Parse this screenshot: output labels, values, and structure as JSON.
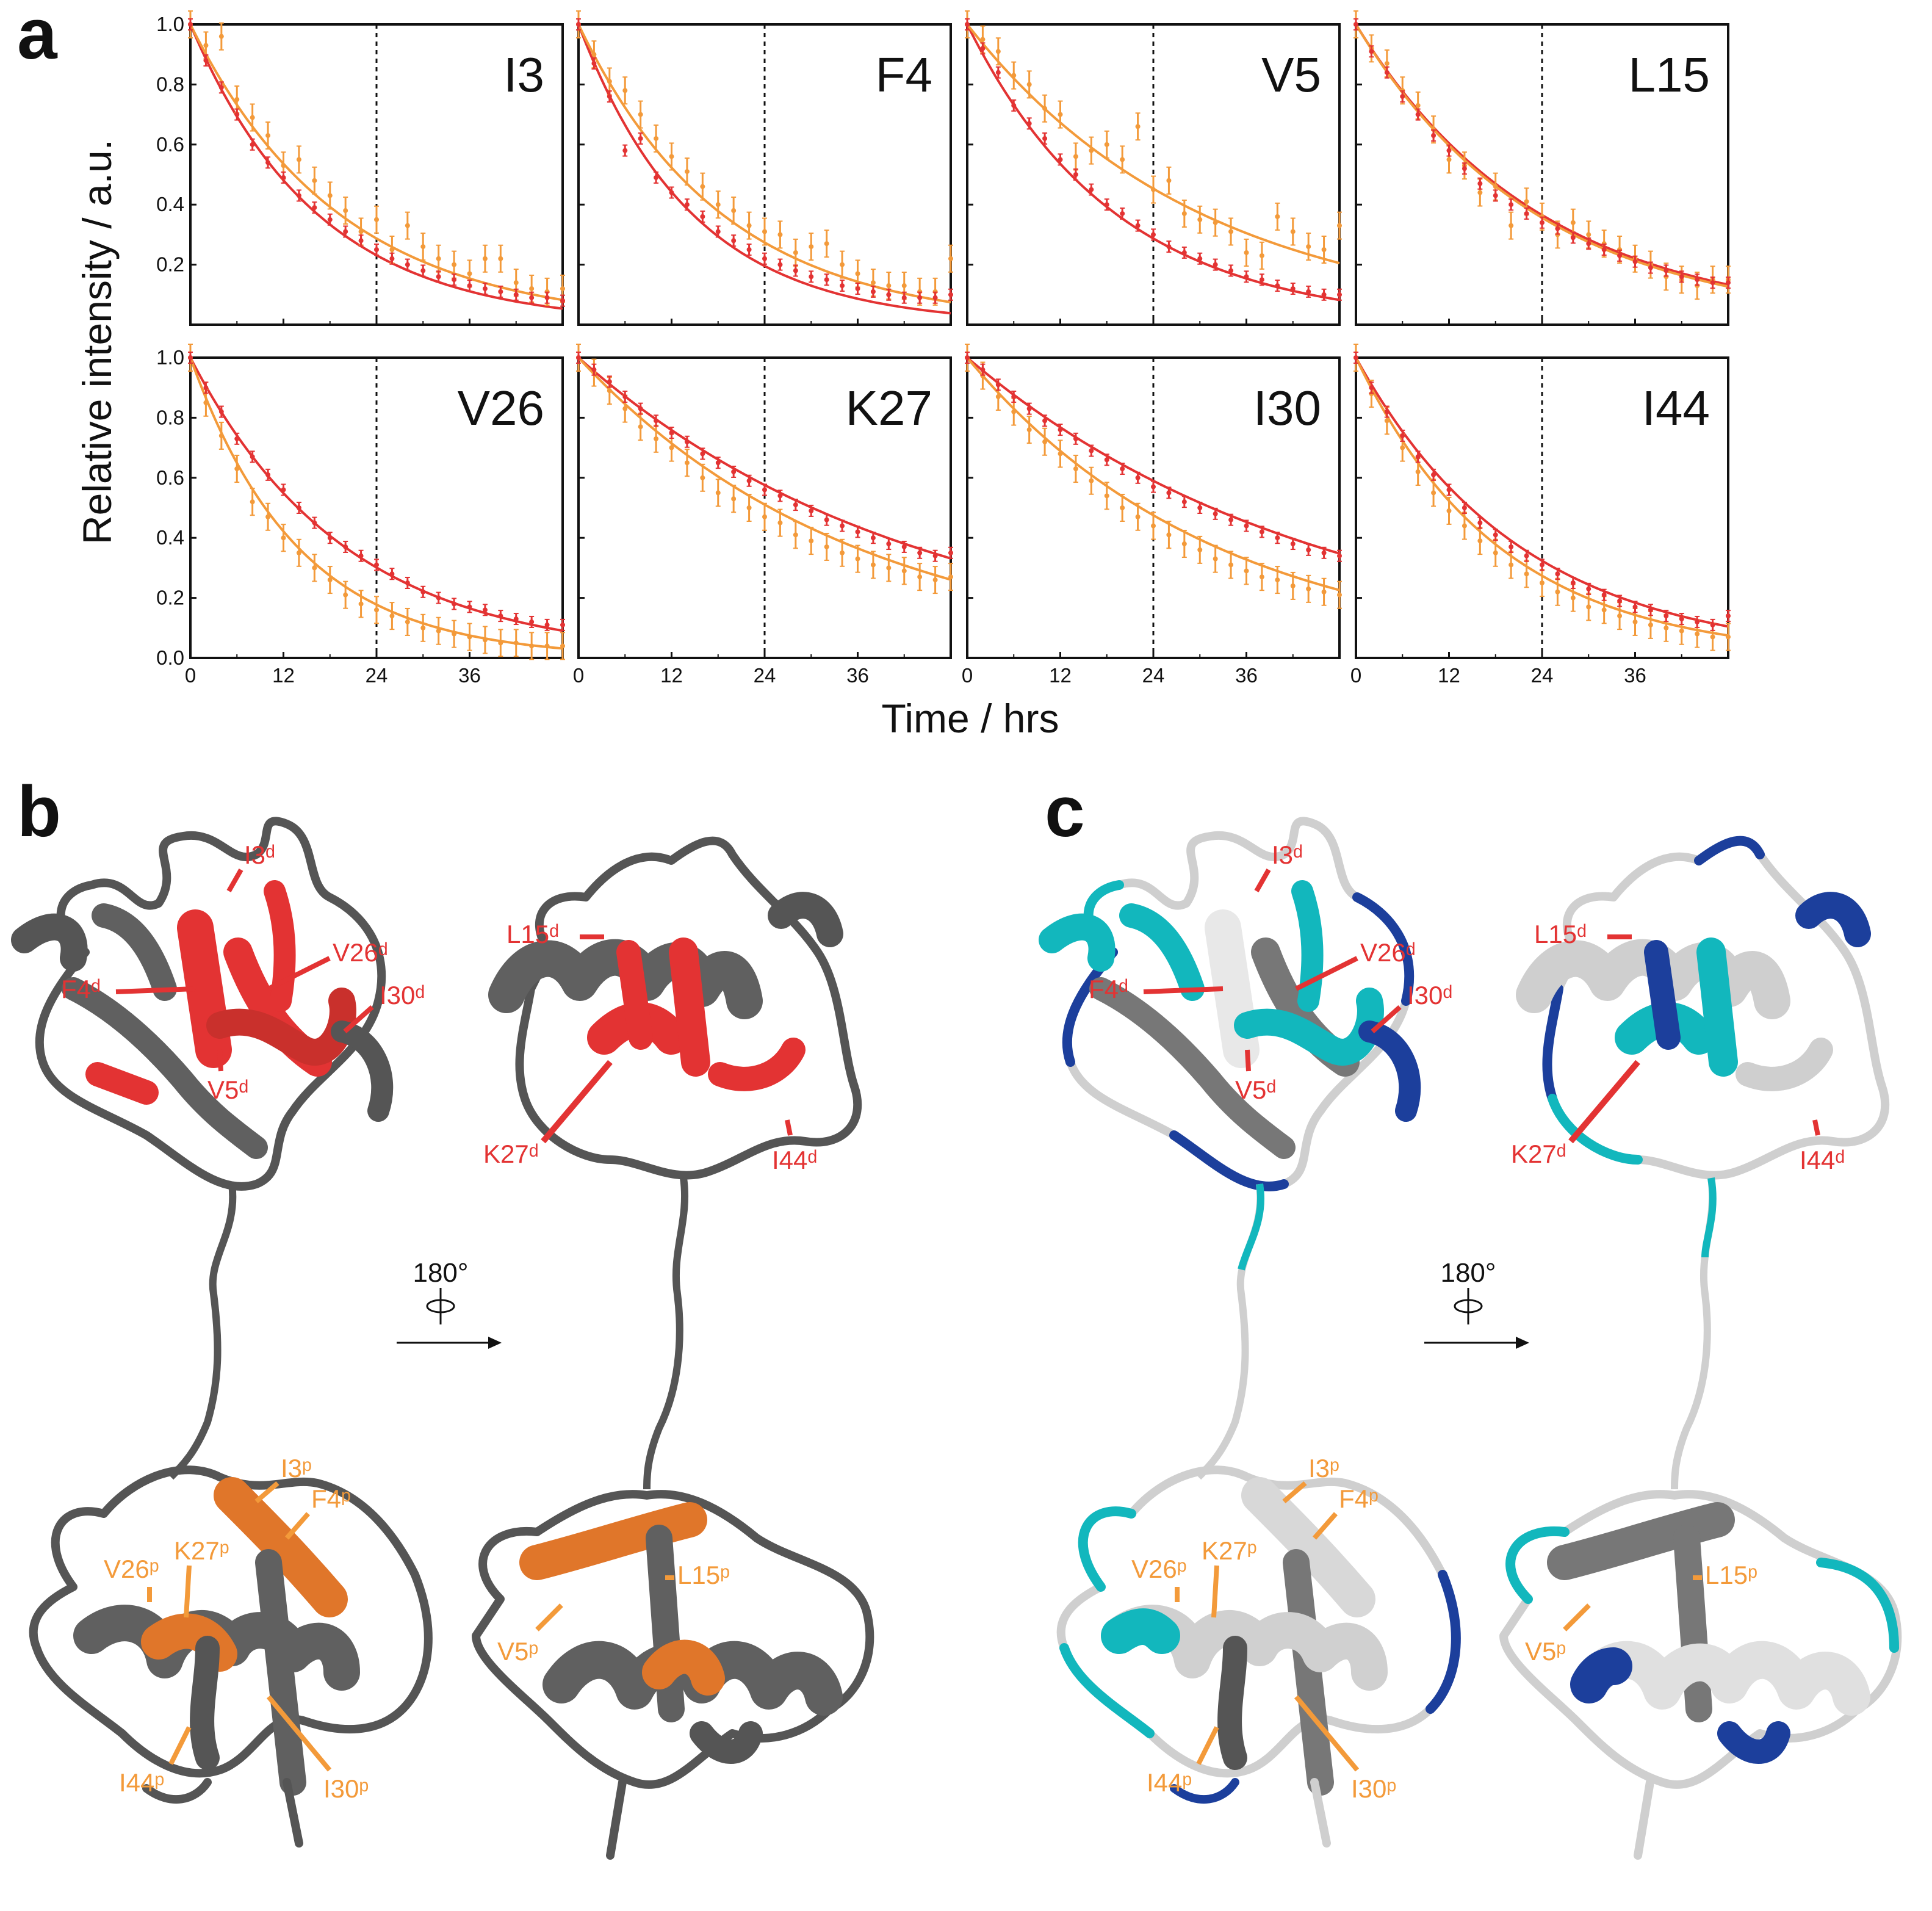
{
  "panels": {
    "a": "a",
    "b": "b",
    "c": "c"
  },
  "colors": {
    "dimer": "#e33333",
    "proximal": "#f39a3a",
    "gray": "#555555",
    "gray_light": "#cfcfcf",
    "cyan": "#12b7bd",
    "blue": "#1c3f9c"
  },
  "chart_data": {
    "type": "scatter",
    "xlabel": "Time / hrs",
    "ylabel": "Relative intensity / a.u.",
    "xlim": [
      0,
      48
    ],
    "ylim": [
      0,
      1.0
    ],
    "xticks": [
      0,
      12,
      24,
      36
    ],
    "yticks": [
      0.0,
      0.2,
      0.4,
      0.6,
      0.8,
      1.0
    ],
    "ytick_labels": [
      "0.0",
      "0.2",
      "0.4",
      "0.6",
      "0.8",
      "1.0"
    ],
    "xtick_labels": [
      "0",
      "12",
      "24",
      "36"
    ],
    "vline_x": 24,
    "x": [
      0,
      2,
      4,
      6,
      8,
      10,
      12,
      14,
      16,
      18,
      20,
      22,
      24,
      26,
      28,
      30,
      32,
      34,
      36,
      38,
      40,
      42,
      44,
      46,
      48
    ],
    "series_colors": [
      "#e33333",
      "#f39a3a"
    ],
    "subplots": [
      {
        "name": "I3",
        "rates": [
          0.061,
          0.052
        ],
        "values_red": [
          1.0,
          0.88,
          0.79,
          0.7,
          0.6,
          0.54,
          0.49,
          0.43,
          0.39,
          0.35,
          0.31,
          0.28,
          0.25,
          0.22,
          0.2,
          0.18,
          0.16,
          0.15,
          0.13,
          0.12,
          0.11,
          0.1,
          0.09,
          0.09,
          0.08
        ],
        "values_orange": [
          1.0,
          0.93,
          0.96,
          0.75,
          0.69,
          0.63,
          0.53,
          0.55,
          0.48,
          0.43,
          0.38,
          0.31,
          0.35,
          0.25,
          0.33,
          0.26,
          0.22,
          0.2,
          0.17,
          0.22,
          0.22,
          0.14,
          0.12,
          0.11,
          0.12
        ]
      },
      {
        "name": "F4",
        "rates": [
          0.068,
          0.054
        ],
        "values_red": [
          1.0,
          0.87,
          0.76,
          0.58,
          0.62,
          0.49,
          0.44,
          0.4,
          0.36,
          0.31,
          0.28,
          0.25,
          0.22,
          0.2,
          0.18,
          0.16,
          0.15,
          0.13,
          0.12,
          0.11,
          0.1,
          0.09,
          0.09,
          0.09,
          0.1
        ],
        "values_orange": [
          1.0,
          0.9,
          0.81,
          0.78,
          0.7,
          0.62,
          0.56,
          0.51,
          0.46,
          0.4,
          0.38,
          0.33,
          0.31,
          0.3,
          0.24,
          0.26,
          0.27,
          0.2,
          0.17,
          0.14,
          0.13,
          0.13,
          0.11,
          0.11,
          0.22
        ]
      },
      {
        "name": "V5",
        "rates": [
          0.052,
          0.033
        ],
        "values_red": [
          1.0,
          0.92,
          0.84,
          0.73,
          0.67,
          0.62,
          0.55,
          0.5,
          0.45,
          0.4,
          0.37,
          0.33,
          0.3,
          0.26,
          0.24,
          0.22,
          0.2,
          0.18,
          0.16,
          0.15,
          0.13,
          0.12,
          0.11,
          0.1,
          0.1
        ],
        "values_orange": [
          1.0,
          0.95,
          0.91,
          0.83,
          0.8,
          0.72,
          0.7,
          0.56,
          0.58,
          0.6,
          0.55,
          0.66,
          0.45,
          0.48,
          0.37,
          0.35,
          0.34,
          0.31,
          0.24,
          0.23,
          0.36,
          0.31,
          0.26,
          0.25,
          0.33
        ]
      },
      {
        "name": "L15",
        "rates": [
          0.042,
          0.043
        ],
        "values_red": [
          1.0,
          0.91,
          0.84,
          0.76,
          0.7,
          0.63,
          0.58,
          0.52,
          0.47,
          0.43,
          0.4,
          0.37,
          0.34,
          0.32,
          0.29,
          0.27,
          0.25,
          0.23,
          0.21,
          0.19,
          0.18,
          0.16,
          0.15,
          0.14,
          0.14
        ],
        "values_orange": [
          1.0,
          0.92,
          0.87,
          0.78,
          0.73,
          0.65,
          0.55,
          0.53,
          0.44,
          0.46,
          0.33,
          0.41,
          0.36,
          0.3,
          0.34,
          0.3,
          0.27,
          0.25,
          0.22,
          0.2,
          0.16,
          0.15,
          0.13,
          0.15,
          0.15
        ]
      },
      {
        "name": "V26",
        "rates": [
          0.05,
          0.072
        ],
        "values_red": [
          1.0,
          0.9,
          0.82,
          0.73,
          0.67,
          0.61,
          0.56,
          0.5,
          0.45,
          0.4,
          0.37,
          0.34,
          0.31,
          0.28,
          0.25,
          0.22,
          0.2,
          0.18,
          0.17,
          0.16,
          0.14,
          0.13,
          0.12,
          0.11,
          0.11
        ],
        "values_orange": [
          1.0,
          0.85,
          0.74,
          0.63,
          0.52,
          0.47,
          0.4,
          0.35,
          0.3,
          0.26,
          0.21,
          0.18,
          0.16,
          0.14,
          0.12,
          0.1,
          0.09,
          0.08,
          0.07,
          0.06,
          0.05,
          0.05,
          0.04,
          0.04,
          0.04
        ]
      },
      {
        "name": "K27",
        "rates": [
          0.023,
          0.028
        ],
        "values_red": [
          1.0,
          0.96,
          0.92,
          0.87,
          0.83,
          0.79,
          0.75,
          0.72,
          0.68,
          0.65,
          0.62,
          0.59,
          0.56,
          0.54,
          0.51,
          0.49,
          0.46,
          0.44,
          0.42,
          0.4,
          0.38,
          0.37,
          0.35,
          0.34,
          0.35
        ],
        "values_orange": [
          1.0,
          0.95,
          0.89,
          0.83,
          0.77,
          0.73,
          0.7,
          0.65,
          0.6,
          0.55,
          0.53,
          0.5,
          0.47,
          0.45,
          0.41,
          0.39,
          0.37,
          0.35,
          0.33,
          0.31,
          0.3,
          0.29,
          0.27,
          0.26,
          0.27
        ]
      },
      {
        "name": "I30",
        "rates": [
          0.022,
          0.031
        ],
        "values_red": [
          1.0,
          0.96,
          0.91,
          0.87,
          0.83,
          0.79,
          0.76,
          0.73,
          0.69,
          0.66,
          0.63,
          0.6,
          0.57,
          0.55,
          0.52,
          0.5,
          0.48,
          0.46,
          0.44,
          0.42,
          0.4,
          0.38,
          0.36,
          0.35,
          0.34
        ],
        "values_orange": [
          1.0,
          0.94,
          0.87,
          0.82,
          0.76,
          0.72,
          0.68,
          0.63,
          0.59,
          0.54,
          0.5,
          0.47,
          0.44,
          0.41,
          0.38,
          0.36,
          0.33,
          0.31,
          0.29,
          0.27,
          0.26,
          0.24,
          0.23,
          0.22,
          0.21
        ]
      },
      {
        "name": "I44",
        "rates": [
          0.047,
          0.054
        ],
        "values_red": [
          1.0,
          0.9,
          0.82,
          0.74,
          0.67,
          0.61,
          0.56,
          0.5,
          0.45,
          0.41,
          0.37,
          0.34,
          0.31,
          0.28,
          0.25,
          0.23,
          0.21,
          0.19,
          0.17,
          0.16,
          0.14,
          0.13,
          0.12,
          0.11,
          0.14
        ],
        "values_orange": [
          1.0,
          0.88,
          0.79,
          0.7,
          0.62,
          0.55,
          0.49,
          0.44,
          0.39,
          0.35,
          0.31,
          0.28,
          0.25,
          0.22,
          0.2,
          0.17,
          0.16,
          0.14,
          0.12,
          0.11,
          0.1,
          0.09,
          0.08,
          0.07,
          0.07
        ]
      }
    ]
  },
  "structure_labels": {
    "b_left_top": [
      "I3ᵈ",
      "V26ᵈ",
      "F4ᵈ",
      "I30ᵈ",
      "V5ᵈ"
    ],
    "b_right_top": [
      "L15ᵈ",
      "K27ᵈ",
      "I44ᵈ"
    ],
    "b_left_bot": [
      "I3ᵖ",
      "F4ᵖ",
      "K27ᵖ",
      "V26ᵖ",
      "I44ᵖ",
      "I30ᵖ"
    ],
    "b_right_bot": [
      "L15ᵖ",
      "V5ᵖ"
    ],
    "rotation": "180°"
  }
}
